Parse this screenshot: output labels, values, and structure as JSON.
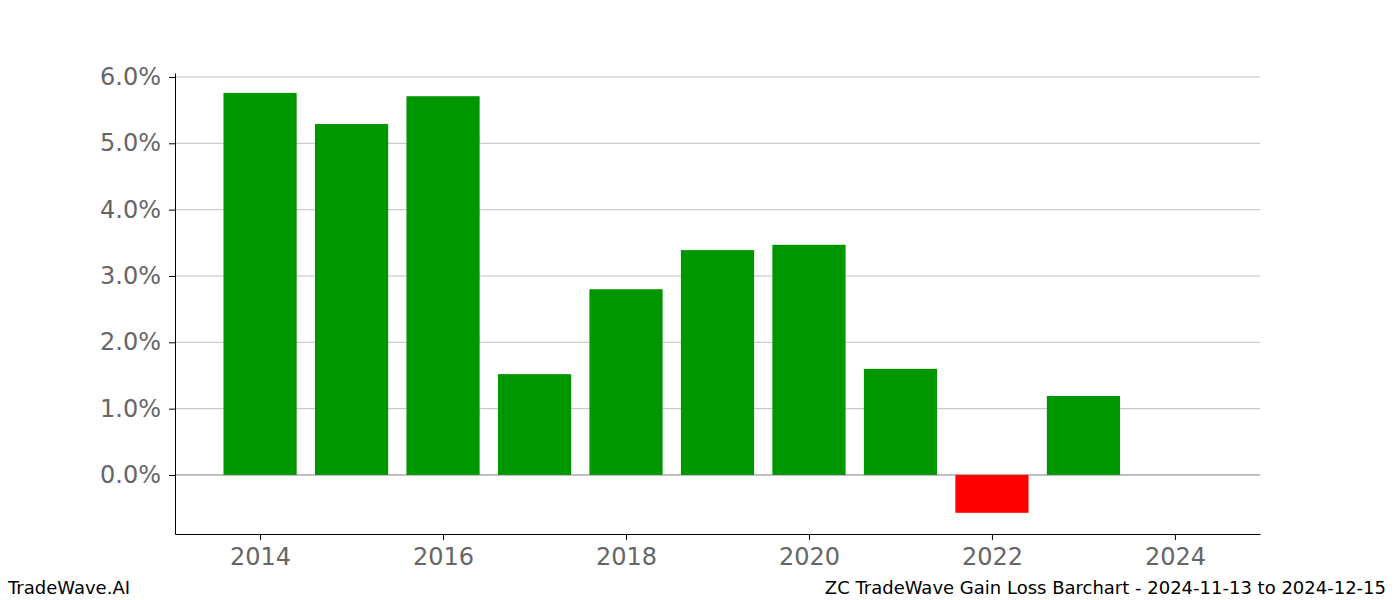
{
  "chart_data": {
    "type": "bar",
    "title": "ZC TradeWave Gain Loss Barchart - 2024-11-13 to 2024-12-15",
    "annotations": [
      "TradeWave.AI"
    ],
    "x": [
      2014,
      2015,
      2016,
      2017,
      2018,
      2019,
      2020,
      2021,
      2022,
      2023
    ],
    "values": [
      5.76,
      5.29,
      5.71,
      1.52,
      2.8,
      3.39,
      3.47,
      1.6,
      -0.57,
      1.19
    ],
    "colors": [
      "#009600",
      "#009600",
      "#009600",
      "#009600",
      "#009600",
      "#009600",
      "#009600",
      "#009600",
      "#ff0000",
      "#009600"
    ],
    "xlim": [
      2013.07,
      2024.93
    ],
    "xticks": [
      2014,
      2016,
      2018,
      2020,
      2022,
      2024
    ],
    "ylim": [
      -0.89,
      6.06
    ],
    "yticks": [
      {
        "value": 0,
        "label": "0.0%"
      },
      {
        "value": 1,
        "label": "1.0%"
      },
      {
        "value": 2,
        "label": "2.0%"
      },
      {
        "value": 3,
        "label": "3.0%"
      },
      {
        "value": 4,
        "label": "4.0%"
      },
      {
        "value": 5,
        "label": "5.0%"
      },
      {
        "value": 6,
        "label": "6.0%"
      }
    ],
    "grid": true
  }
}
